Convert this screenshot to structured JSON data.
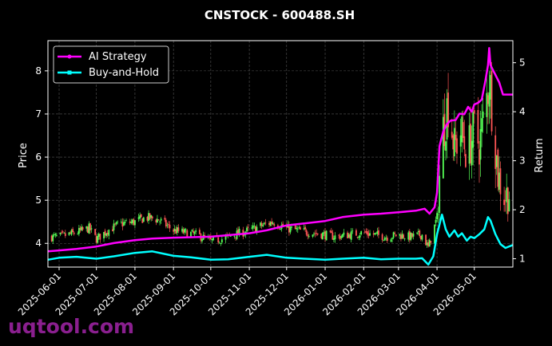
{
  "watermark": "uqtool.com",
  "chart_data": {
    "type": "line",
    "title": "CNSTOCK - 600488.SH",
    "xlabel": "",
    "ylabel": "Price",
    "y2label": "Return",
    "grid": true,
    "legend_position": "top-left",
    "x_range": [
      "2025-05-23",
      "2026-06-01"
    ],
    "ylim": [
      3.45,
      8.7
    ],
    "y2lim": [
      0.83,
      5.45
    ],
    "x_ticks": [
      "2025-06-01",
      "2025-07-01",
      "2025-08-01",
      "2025-09-01",
      "2025-10-01",
      "2025-11-01",
      "2025-12-01",
      "2026-01-01",
      "2026-02-01",
      "2026-03-01",
      "2026-04-01",
      "2026-05-01"
    ],
    "y_ticks": [
      4,
      5,
      6,
      7,
      8
    ],
    "y2_ticks": [
      1,
      2,
      3,
      4,
      5
    ],
    "colors": {
      "up": "#55ff55",
      "down": "#ff5555",
      "strategy": "#ff00ff",
      "buyhold": "#00ffff",
      "grid": "#555555"
    },
    "price_series": {
      "name": "",
      "note_kind": "candlestick",
      "points": [
        [
          "2025-05-23",
          4.15
        ],
        [
          "2025-06-01",
          4.15
        ],
        [
          "2025-06-15",
          4.25
        ],
        [
          "2025-06-25",
          4.35
        ],
        [
          "2025-07-01",
          4.1
        ],
        [
          "2025-07-10",
          4.3
        ],
        [
          "2025-07-20",
          4.45
        ],
        [
          "2025-08-01",
          4.5
        ],
        [
          "2025-08-10",
          4.6
        ],
        [
          "2025-08-20",
          4.55
        ],
        [
          "2025-09-01",
          4.3
        ],
        [
          "2025-09-10",
          4.25
        ],
        [
          "2025-09-20",
          4.2
        ],
        [
          "2025-10-01",
          4.05
        ],
        [
          "2025-10-10",
          4.1
        ],
        [
          "2025-10-20",
          4.2
        ],
        [
          "2025-11-01",
          4.3
        ],
        [
          "2025-11-10",
          4.4
        ],
        [
          "2025-11-20",
          4.5
        ],
        [
          "2025-12-01",
          4.35
        ],
        [
          "2025-12-10",
          4.3
        ],
        [
          "2025-12-20",
          4.25
        ],
        [
          "2026-01-01",
          4.2
        ],
        [
          "2026-01-10",
          4.15
        ],
        [
          "2026-01-20",
          4.2
        ],
        [
          "2026-02-01",
          4.25
        ],
        [
          "2026-02-10",
          4.2
        ],
        [
          "2026-02-20",
          4.15
        ],
        [
          "2026-03-01",
          4.2
        ],
        [
          "2026-03-10",
          4.15
        ],
        [
          "2026-03-20",
          4.2
        ],
        [
          "2026-03-25",
          3.9
        ],
        [
          "2026-04-01",
          4.6
        ],
        [
          "2026-04-05",
          6.5
        ],
        [
          "2026-04-10",
          7.3
        ],
        [
          "2026-04-15",
          6.2
        ],
        [
          "2026-04-20",
          6.6
        ],
        [
          "2026-04-25",
          6.1
        ],
        [
          "2026-05-01",
          6.6
        ],
        [
          "2026-05-05",
          6.3
        ],
        [
          "2026-05-10",
          7.1
        ],
        [
          "2026-05-13",
          7.9
        ],
        [
          "2026-05-17",
          6.6
        ],
        [
          "2026-05-20",
          5.6
        ],
        [
          "2026-05-25",
          5.1
        ],
        [
          "2026-06-01",
          5.2
        ]
      ]
    },
    "series": [
      {
        "name": "AI Strategy",
        "points": [
          [
            "2025-05-23",
            1.15
          ],
          [
            "2025-06-01",
            1.17
          ],
          [
            "2025-06-15",
            1.2
          ],
          [
            "2025-07-01",
            1.25
          ],
          [
            "2025-07-15",
            1.32
          ],
          [
            "2025-08-01",
            1.38
          ],
          [
            "2025-08-15",
            1.41
          ],
          [
            "2025-09-01",
            1.43
          ],
          [
            "2025-10-01",
            1.45
          ],
          [
            "2025-10-15",
            1.48
          ],
          [
            "2025-11-01",
            1.52
          ],
          [
            "2025-11-15",
            1.58
          ],
          [
            "2025-12-01",
            1.68
          ],
          [
            "2025-12-15",
            1.72
          ],
          [
            "2026-01-01",
            1.77
          ],
          [
            "2026-01-15",
            1.85
          ],
          [
            "2026-02-01",
            1.9
          ],
          [
            "2026-02-15",
            1.92
          ],
          [
            "2026-03-01",
            1.95
          ],
          [
            "2026-03-15",
            1.98
          ],
          [
            "2026-03-22",
            2.02
          ],
          [
            "2026-03-26",
            1.92
          ],
          [
            "2026-03-30",
            2.05
          ],
          [
            "2026-04-01",
            2.35
          ],
          [
            "2026-04-03",
            3.3
          ],
          [
            "2026-04-06",
            3.6
          ],
          [
            "2026-04-09",
            3.75
          ],
          [
            "2026-04-12",
            3.82
          ],
          [
            "2026-04-16",
            3.83
          ],
          [
            "2026-04-19",
            3.96
          ],
          [
            "2026-04-23",
            3.95
          ],
          [
            "2026-04-26",
            4.1
          ],
          [
            "2026-04-29",
            4.0
          ],
          [
            "2026-05-01",
            4.15
          ],
          [
            "2026-05-04",
            4.18
          ],
          [
            "2026-05-07",
            4.25
          ],
          [
            "2026-05-10",
            4.65
          ],
          [
            "2026-05-12",
            4.95
          ],
          [
            "2026-05-13",
            5.3
          ],
          [
            "2026-05-14",
            4.95
          ],
          [
            "2026-05-17",
            4.8
          ],
          [
            "2026-05-21",
            4.6
          ],
          [
            "2026-05-24",
            4.35
          ],
          [
            "2026-06-01",
            4.35
          ]
        ]
      },
      {
        "name": "Buy-and-Hold",
        "points": [
          [
            "2025-05-23",
            0.98
          ],
          [
            "2025-06-01",
            1.02
          ],
          [
            "2025-06-15",
            1.04
          ],
          [
            "2025-07-01",
            1.0
          ],
          [
            "2025-07-15",
            1.05
          ],
          [
            "2025-08-01",
            1.12
          ],
          [
            "2025-08-15",
            1.15
          ],
          [
            "2025-09-01",
            1.06
          ],
          [
            "2025-09-15",
            1.03
          ],
          [
            "2025-10-01",
            0.98
          ],
          [
            "2025-10-15",
            0.99
          ],
          [
            "2025-11-01",
            1.04
          ],
          [
            "2025-11-15",
            1.08
          ],
          [
            "2025-12-01",
            1.02
          ],
          [
            "2025-12-15",
            1.0
          ],
          [
            "2026-01-01",
            0.98
          ],
          [
            "2026-01-15",
            1.0
          ],
          [
            "2026-02-01",
            1.02
          ],
          [
            "2026-02-15",
            0.99
          ],
          [
            "2026-03-01",
            1.0
          ],
          [
            "2026-03-15",
            1.0
          ],
          [
            "2026-03-20",
            1.01
          ],
          [
            "2026-03-25",
            0.88
          ],
          [
            "2026-03-29",
            1.05
          ],
          [
            "2026-04-01",
            1.5
          ],
          [
            "2026-04-05",
            1.9
          ],
          [
            "2026-04-08",
            1.6
          ],
          [
            "2026-04-11",
            1.45
          ],
          [
            "2026-04-15",
            1.58
          ],
          [
            "2026-04-18",
            1.45
          ],
          [
            "2026-04-21",
            1.52
          ],
          [
            "2026-04-25",
            1.37
          ],
          [
            "2026-04-28",
            1.45
          ],
          [
            "2026-05-01",
            1.42
          ],
          [
            "2026-05-05",
            1.5
          ],
          [
            "2026-05-09",
            1.6
          ],
          [
            "2026-05-12",
            1.85
          ],
          [
            "2026-05-14",
            1.78
          ],
          [
            "2026-05-18",
            1.5
          ],
          [
            "2026-05-22",
            1.3
          ],
          [
            "2026-05-26",
            1.22
          ],
          [
            "2026-06-01",
            1.28
          ]
        ]
      }
    ]
  }
}
